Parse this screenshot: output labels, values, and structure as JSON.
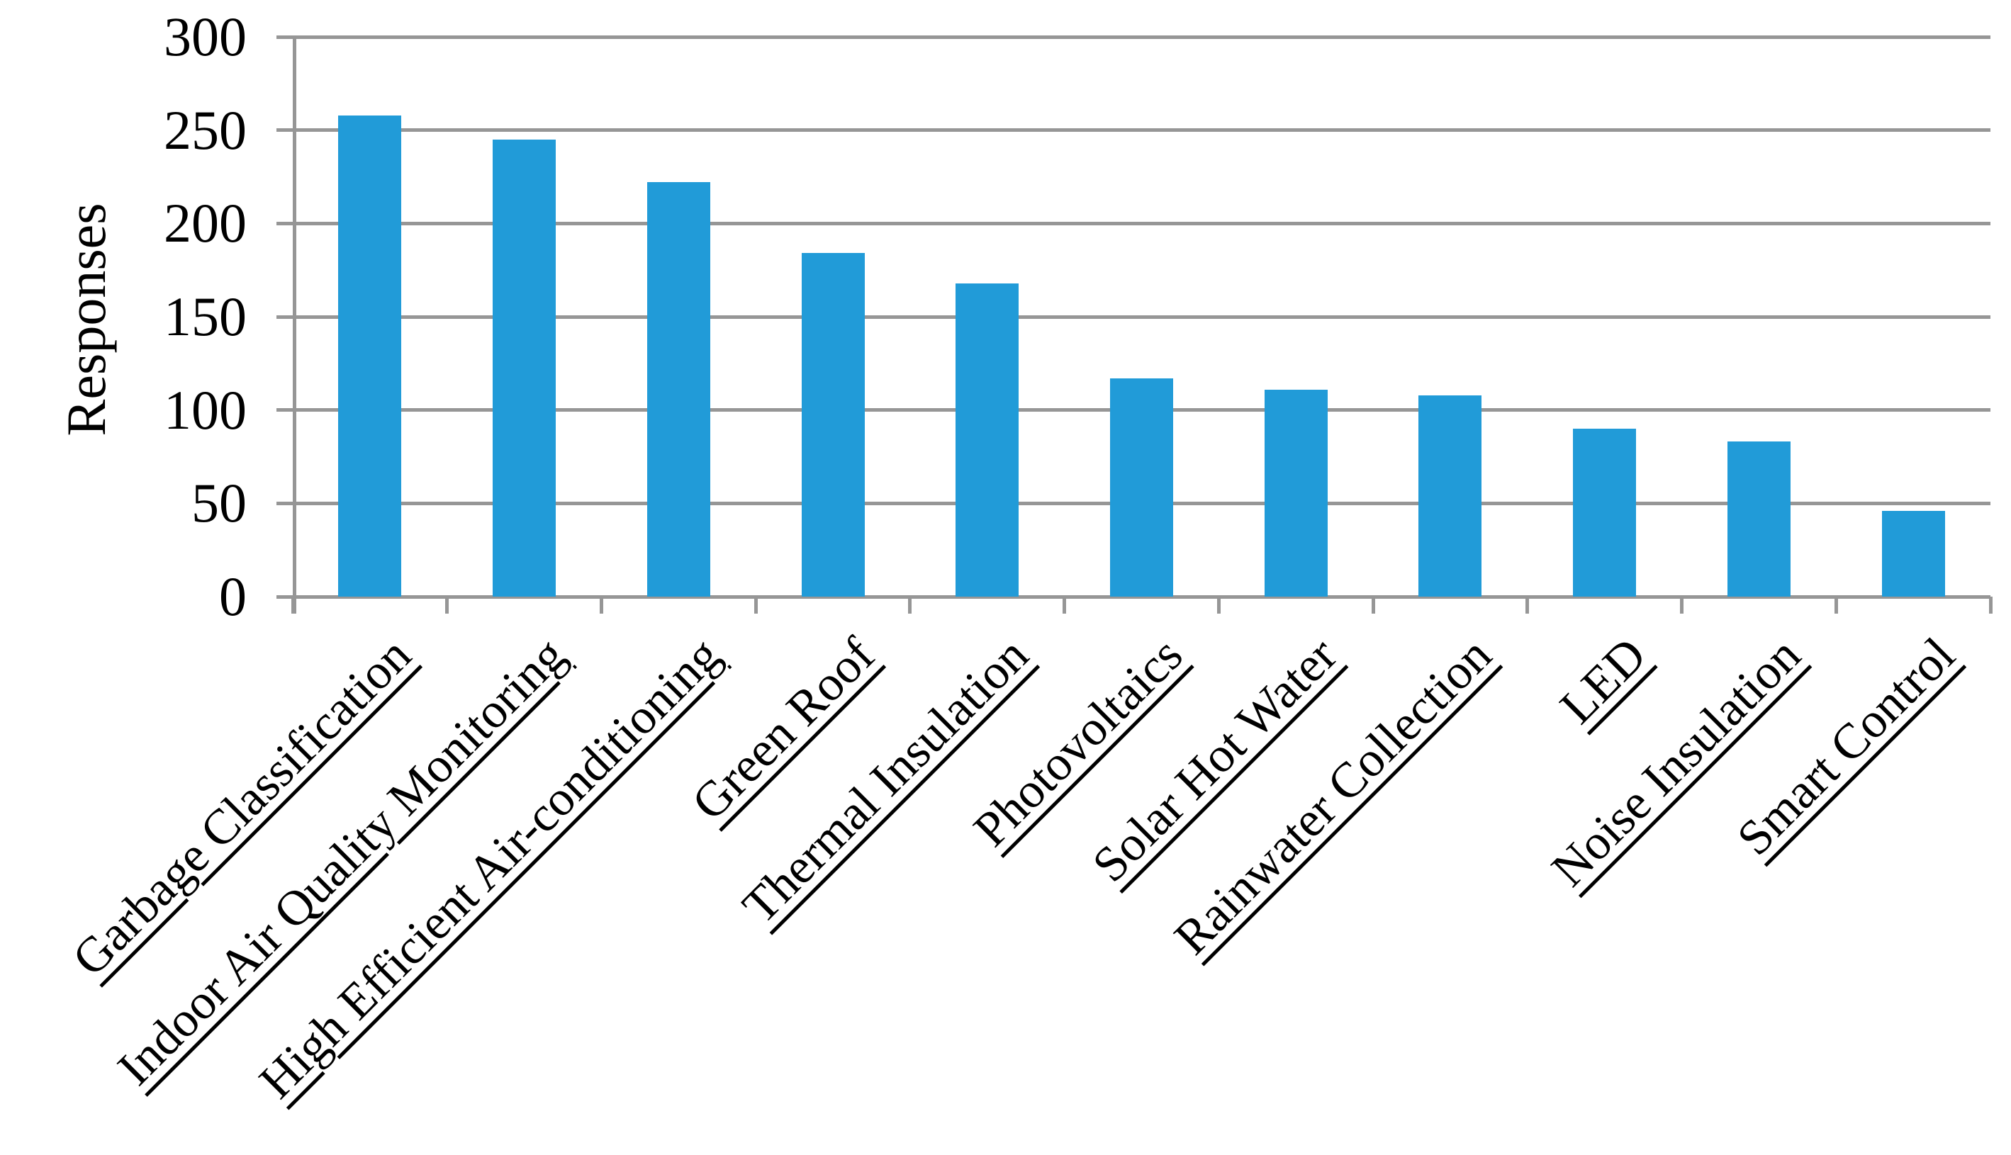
{
  "chart_data": {
    "type": "bar",
    "title": "",
    "xlabel": "",
    "ylabel": "Responses",
    "categories": [
      "Garbage Classification",
      "Indoor Air Quality Monitoring",
      "High Efficient Air-conditioning",
      "Green Roof",
      "Thermal Insulation",
      "Photovoltaics",
      "Solar Hot Water",
      "Rainwater Collection",
      "LED",
      "Noise Insulation",
      "Smart Control"
    ],
    "values": [
      258,
      245,
      222,
      184,
      168,
      117,
      111,
      108,
      90,
      83,
      46
    ],
    "ylim": [
      0,
      300
    ],
    "yticks": [
      0,
      50,
      100,
      150,
      200,
      250,
      300
    ],
    "grid": true,
    "legend": "none",
    "bar_color": "#219BD8",
    "axis_color": "#969696",
    "text_color": "#000000",
    "category_label_rotation_deg": 45,
    "category_labels_underlined": true
  }
}
